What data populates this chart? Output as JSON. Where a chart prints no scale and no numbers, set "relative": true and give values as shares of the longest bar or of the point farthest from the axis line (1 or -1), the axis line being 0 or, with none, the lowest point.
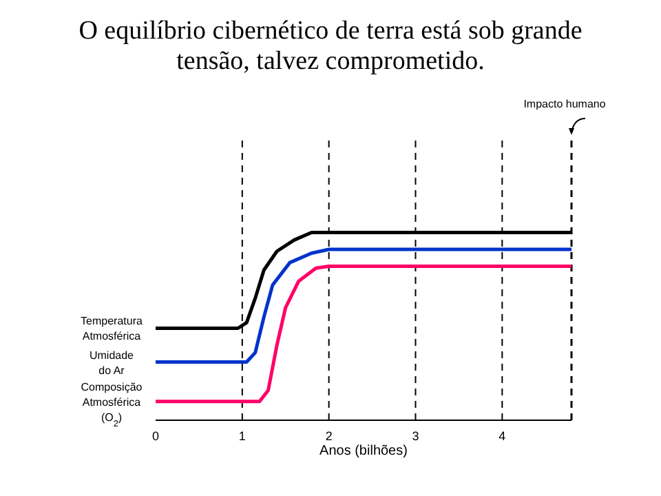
{
  "chart_data": {
    "type": "line",
    "title": "O equilíbrio cibernético de terra está sob grande tensão, talvez comprometido.",
    "xlabel": "Anos (bilhões)",
    "relative": true,
    "xlim": [
      0,
      4.8
    ],
    "xticks": [
      0,
      1,
      2,
      3,
      4
    ],
    "grid": "x",
    "marker": "none",
    "line_style": "solid",
    "ref_lines": [
      {
        "axis": "x",
        "value": 4.8,
        "label": "Impacto humano",
        "line_style": "dashed",
        "color": "#000000"
      }
    ],
    "series": [
      {
        "name": "Temperatura Atmosférica",
        "color": "#000000",
        "x": [
          0,
          0.95,
          1.05,
          1.15,
          1.25,
          1.4,
          1.6,
          1.8,
          4.8
        ],
        "values": [
          0.49,
          0.49,
          0.52,
          0.65,
          0.8,
          0.9,
          0.96,
          1,
          1
        ]
      },
      {
        "name": "Umidade do Ar",
        "color": "#0033cc",
        "x": [
          0,
          1.05,
          1.15,
          1.25,
          1.35,
          1.55,
          1.8,
          2,
          4.8
        ],
        "values": [
          0.31,
          0.31,
          0.36,
          0.55,
          0.72,
          0.84,
          0.89,
          0.91,
          0.91
        ]
      },
      {
        "name": "Composição Atmosférica (O$_{2}$)",
        "color": "#ff0066",
        "x": [
          0,
          1.2,
          1.3,
          1.4,
          1.5,
          1.65,
          1.85,
          2,
          4.8
        ],
        "values": [
          0.1,
          0.1,
          0.16,
          0.4,
          0.6,
          0.74,
          0.81,
          0.82,
          0.82
        ]
      }
    ]
  }
}
